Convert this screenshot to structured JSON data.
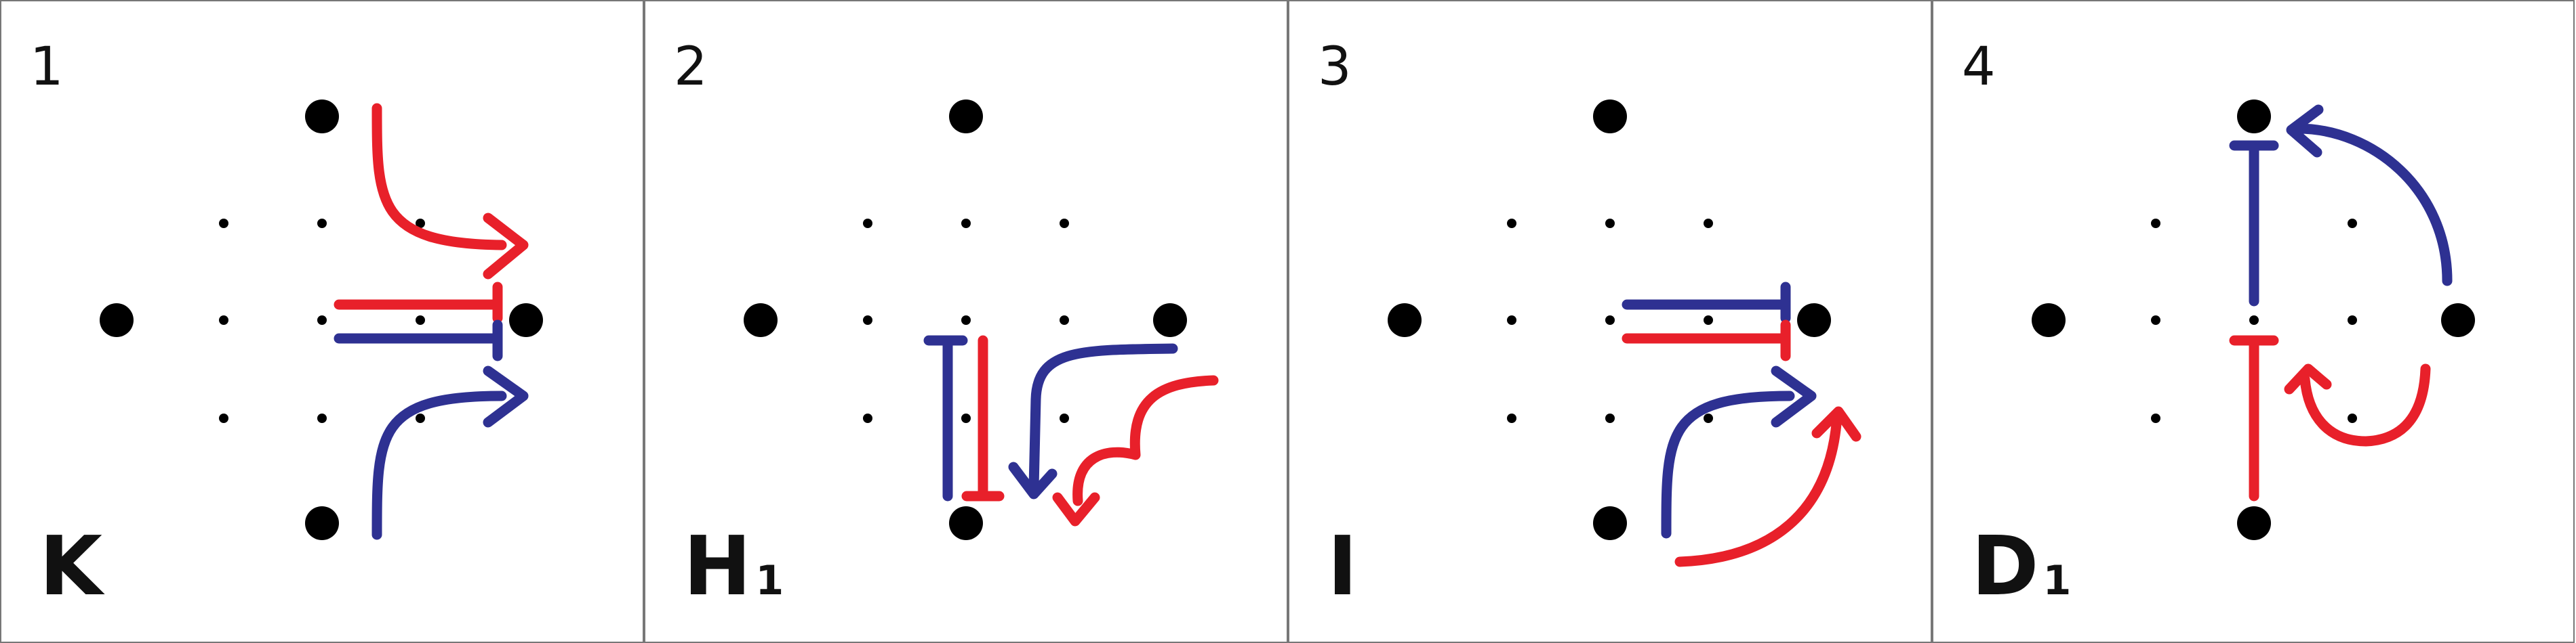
{
  "colors": {
    "red": "#e8202a",
    "blue": "#2e3192",
    "dot": "#000000",
    "border": "#777777"
  },
  "panels": [
    {
      "number": "1",
      "name": "K",
      "subscript": ""
    },
    {
      "number": "2",
      "name": "H",
      "subscript": "1"
    },
    {
      "number": "3",
      "name": "I",
      "subscript": ""
    },
    {
      "number": "4",
      "name": "D",
      "subscript": "1"
    }
  ]
}
